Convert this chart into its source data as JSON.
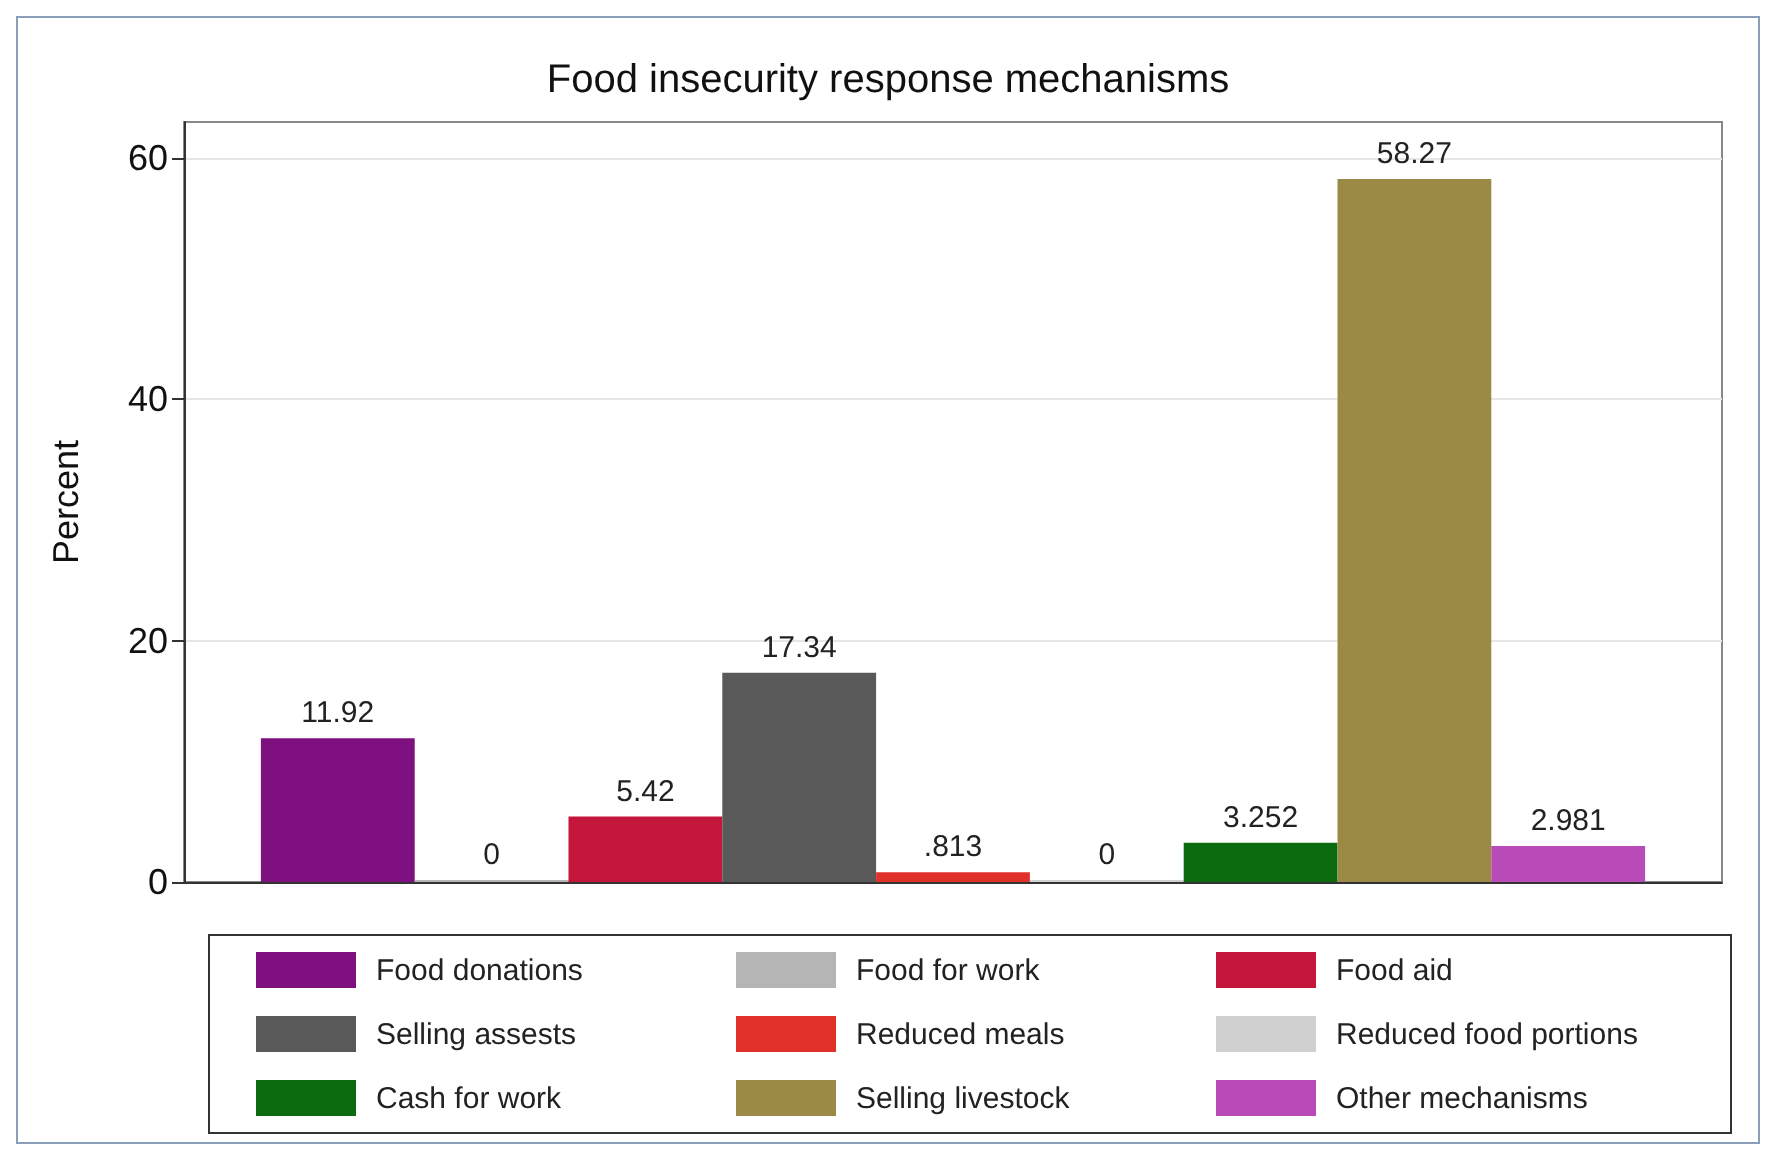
{
  "chart_data": {
    "type": "bar",
    "title": "Food insecurity response mechanisms",
    "ylabel": "Percent",
    "categories": [
      null
    ],
    "ylim": [
      0,
      63
    ],
    "yticks": [
      0,
      20,
      40,
      60
    ],
    "grid": "y",
    "legend": "bottom",
    "series": [
      {
        "name": "Food donations",
        "color": "#7f1080",
        "values": [
          11.92
        ],
        "value_labels": [
          "11.92"
        ]
      },
      {
        "name": "Food for work",
        "color": "#b5b5b5",
        "values": [
          0
        ],
        "value_labels": [
          "0"
        ]
      },
      {
        "name": "Food aid",
        "color": "#c4163a",
        "values": [
          5.42
        ],
        "value_labels": [
          "5.42"
        ]
      },
      {
        "name": "Selling assests",
        "color": "#595959",
        "values": [
          17.34
        ],
        "value_labels": [
          "17.34"
        ]
      },
      {
        "name": "Reduced meals",
        "color": "#e0302a",
        "values": [
          0.813
        ],
        "value_labels": [
          ".813"
        ]
      },
      {
        "name": "Reduced food portions",
        "color": "#d0d0d0",
        "values": [
          0
        ],
        "value_labels": [
          "0"
        ]
      },
      {
        "name": "Cash for work",
        "color": "#0b6b0e",
        "values": [
          3.252
        ],
        "value_labels": [
          "3.252"
        ]
      },
      {
        "name": "Selling livestock",
        "color": "#9b8a45",
        "values": [
          58.27
        ],
        "value_labels": [
          "58.27"
        ]
      },
      {
        "name": "Other mechanisms",
        "color": "#b94bb8",
        "values": [
          2.981
        ],
        "value_labels": [
          "2.981"
        ]
      }
    ]
  }
}
